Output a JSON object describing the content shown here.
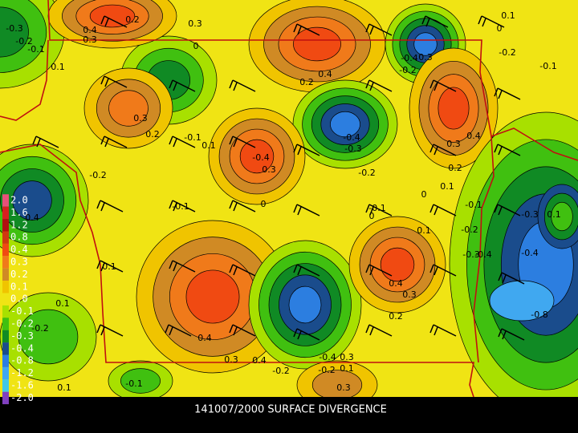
{
  "map": {
    "title": "141007/2000 SURFACE DIVERGENCE",
    "legend": [
      {
        "label": "2.0",
        "color": "#e8507a"
      },
      {
        "label": "1.6",
        "color": "#d82020"
      },
      {
        "label": "1.2",
        "color": "#b01010"
      },
      {
        "label": "0.8",
        "color": "#d03810"
      },
      {
        "label": "0.4",
        "color": "#f04a12"
      },
      {
        "label": "0.3",
        "color": "#f07a1a"
      },
      {
        "label": "0.2",
        "color": "#d08a24"
      },
      {
        "label": "0.1",
        "color": "#f0c400"
      },
      {
        "label": "0.0",
        "color": "#f0e414"
      },
      {
        "label": "-0.1",
        "color": "#a8e000"
      },
      {
        "label": "-0.2",
        "color": "#40c010"
      },
      {
        "label": "-0.3",
        "color": "#108a24"
      },
      {
        "label": "-0.4",
        "color": "#1a4c8c"
      },
      {
        "label": "-0.8",
        "color": "#2c7ee0"
      },
      {
        "label": "-1.2",
        "color": "#40a8f0"
      },
      {
        "label": "-1.6",
        "color": "#40c8e8"
      },
      {
        "label": "-2.0",
        "color": "#8040c0"
      }
    ],
    "contour_labels": [
      "-0.3",
      "-0.2",
      "-0.1",
      "0.4",
      "0.3",
      "0.2",
      "0.3",
      "0",
      "0.1",
      "0.4",
      "0.2",
      "-0.4",
      "0.3",
      "-0.2",
      "-0.2",
      "-0.1",
      "0.1",
      "0",
      "0.3",
      "0.2",
      "-0.1",
      "0.1",
      "-0.4",
      "0.3",
      "-0.4",
      "-0.3",
      "-0.2",
      "0.3",
      "0.4",
      "0.2",
      "0.1",
      "0",
      "-0.2",
      "0.4",
      "-0.1",
      "0",
      "-0.1",
      "0",
      "0.1",
      "-0.1",
      "-0.3",
      "0.1",
      "-0.2",
      "-0.3",
      "-0.4",
      "-0.4",
      "0.1",
      "0.4",
      "0.3",
      "0.2",
      "0.1",
      "-0.8",
      "-0.2",
      "0.4",
      "0.3",
      "0.4",
      "-0.2",
      "-0.4",
      "0.3",
      "-0.2",
      "0.1",
      "-0.1",
      "0.1",
      "0.3"
    ]
  }
}
